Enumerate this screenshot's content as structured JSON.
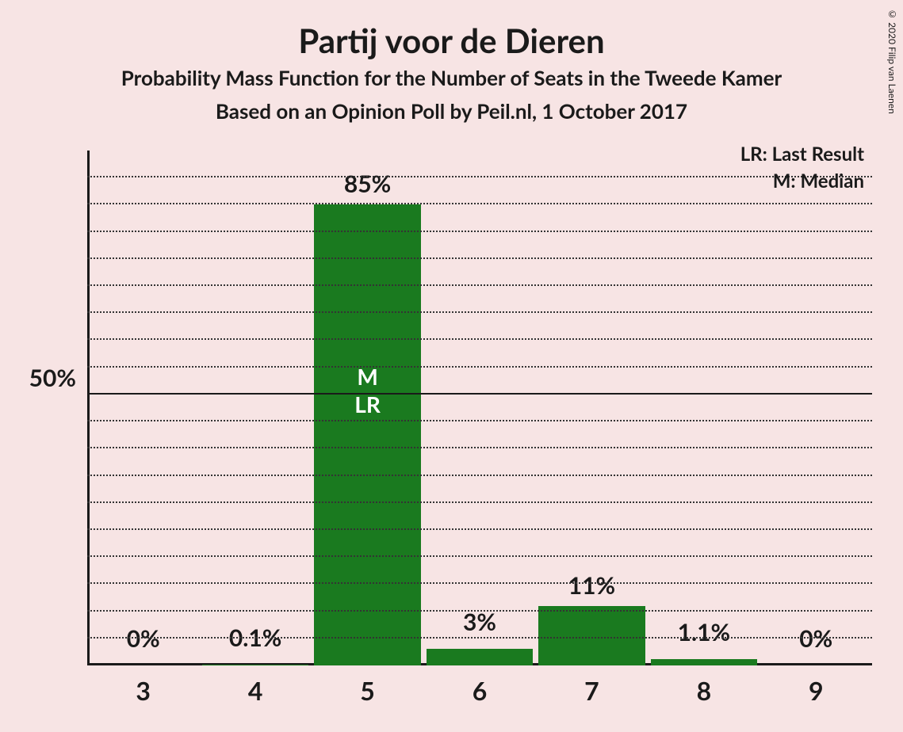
{
  "background_color": "#f7e4e4",
  "text_color": "#1a1a1a",
  "title": "Partij voor de Dieren",
  "subtitle1": "Probability Mass Function for the Number of Seats in the Tweede Kamer",
  "subtitle2": "Based on an Opinion Poll by Peil.nl, 1 October 2017",
  "copyright": "© 2020 Filip van Laenen",
  "legend": {
    "lr": "LR: Last Result",
    "m": "M: Median"
  },
  "chart": {
    "type": "bar",
    "bar_color": "#1a7a1f",
    "grid_color": "#333333",
    "axis_color": "#1a1a1a",
    "ymax": 95,
    "y_major_tick": {
      "value": 50,
      "label": "50%"
    },
    "y_gridlines": [
      5,
      10,
      15,
      20,
      25,
      30,
      35,
      40,
      45,
      50,
      55,
      60,
      65,
      70,
      75,
      80,
      85,
      90
    ],
    "y_solid_lines": [
      50
    ],
    "categories": [
      "3",
      "4",
      "5",
      "6",
      "7",
      "8",
      "9"
    ],
    "values": [
      0,
      0.1,
      85,
      3,
      11,
      1.1,
      0
    ],
    "value_labels": [
      "0%",
      "0.1%",
      "85%",
      "3%",
      "11%",
      "1.1%",
      "0%"
    ],
    "bar_width_ratio": 0.95,
    "median_index": 2,
    "last_result_index": 2,
    "in_bar_annotations": {
      "M": "M",
      "LR": "LR"
    }
  }
}
